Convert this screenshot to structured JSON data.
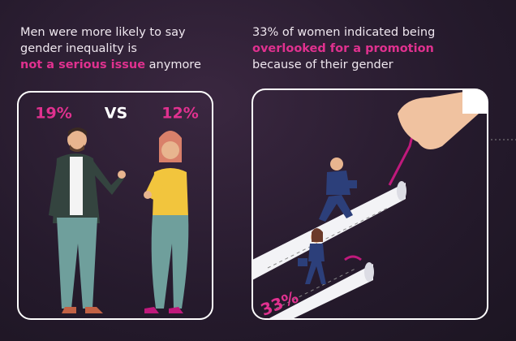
{
  "left": {
    "heading": {
      "line1": "Men were more likely to say",
      "line2": "gender inequality is",
      "highlight": "not a serious issue",
      "rest": "anymore"
    },
    "men": "19%",
    "vs": "VS",
    "women": "12%"
  },
  "right": {
    "heading": {
      "line1": "33% of women indicated being",
      "highlight": "overlooked for a promotion",
      "line3": "because of their gender"
    },
    "stat": "33%"
  }
}
